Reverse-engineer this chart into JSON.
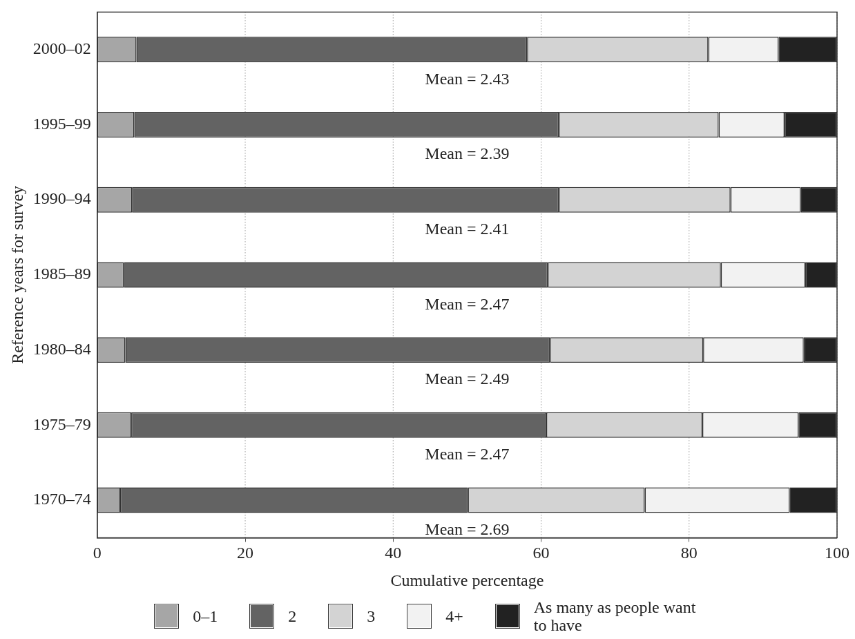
{
  "chart_data": {
    "type": "bar",
    "orientation": "horizontal",
    "stacked": true,
    "xlabel": "Cumulative percentage",
    "ylabel": "Reference years for survey",
    "categories": [
      "2000–02",
      "1995–99",
      "1990–94",
      "1985–89",
      "1980–84",
      "1975–79",
      "1970–74"
    ],
    "series": [
      {
        "name": "0–1",
        "color": "#a6a6a6",
        "values": [
          5.3,
          5.0,
          4.7,
          3.6,
          3.8,
          4.6,
          3.1
        ]
      },
      {
        "name": "2",
        "color": "#636363",
        "values": [
          52.8,
          57.4,
          57.7,
          57.3,
          57.4,
          56.1,
          47.0
        ]
      },
      {
        "name": "3",
        "color": "#d3d3d3",
        "values": [
          24.5,
          21.6,
          23.2,
          23.4,
          20.7,
          21.1,
          23.9
        ]
      },
      {
        "name": "4+",
        "color": "#f2f2f2",
        "values": [
          9.5,
          8.9,
          9.5,
          11.4,
          13.6,
          13.0,
          19.6
        ]
      },
      {
        "name": "As many as people want to have",
        "color": "#222222",
        "values": [
          7.9,
          7.1,
          4.9,
          4.3,
          4.5,
          5.2,
          6.4
        ]
      }
    ],
    "xlim": [
      0,
      100
    ],
    "xticks": [
      0,
      20,
      40,
      60,
      80,
      100
    ],
    "grid": "x",
    "legend": "bottom",
    "annotations": [
      "Mean = 2.43",
      "Mean = 2.39",
      "Mean = 2.41",
      "Mean = 2.47",
      "Mean = 2.49",
      "Mean = 2.47",
      "Mean = 2.69"
    ]
  }
}
